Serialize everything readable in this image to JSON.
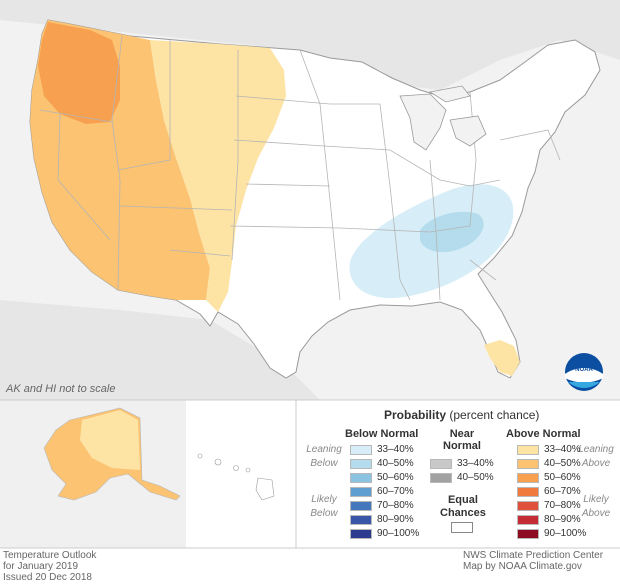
{
  "notes": {
    "scale": "AK and HI not to scale"
  },
  "legend": {
    "title_bold": "Probability",
    "title_rest": "(percent chance)",
    "below_head": "Below Normal",
    "near_head_1": "Near",
    "near_head_2": "Normal",
    "above_head": "Above Normal",
    "leaning_below_1": "Leaning",
    "leaning_below_2": "Below",
    "likely_below_1": "Likely",
    "likely_below_2": "Below",
    "leaning_above_1": "Leaning",
    "leaning_above_2": "Above",
    "likely_above_1": "Likely",
    "likely_above_2": "Above",
    "equal_1": "Equal",
    "equal_2": "Chances",
    "below": [
      {
        "label": "33–40%",
        "color": "#d7eef8"
      },
      {
        "label": "40–50%",
        "color": "#b4dcec"
      },
      {
        "label": "50–60%",
        "color": "#8cc3e0"
      },
      {
        "label": "60–70%",
        "color": "#5f9ed0"
      },
      {
        "label": "70–80%",
        "color": "#4577bd"
      },
      {
        "label": "80–90%",
        "color": "#3a56a8"
      },
      {
        "label": "90–100%",
        "color": "#2c3a8f"
      }
    ],
    "near": [
      {
        "label": "33–40%",
        "color": "#c8c8c8"
      },
      {
        "label": "40–50%",
        "color": "#a2a2a2"
      }
    ],
    "above": [
      {
        "label": "33–40%",
        "color": "#fde4a5"
      },
      {
        "label": "40–50%",
        "color": "#fbc372"
      },
      {
        "label": "50–60%",
        "color": "#f7a050"
      },
      {
        "label": "60–70%",
        "color": "#f07a3d"
      },
      {
        "label": "70–80%",
        "color": "#e0513b"
      },
      {
        "label": "80–90%",
        "color": "#c62c35"
      },
      {
        "label": "90–100%",
        "color": "#8e0c22"
      }
    ]
  },
  "footer": {
    "left_1": "Temperature Outlook",
    "left_2": "for January 2019",
    "left_3": "Issued 20 Dec 2018",
    "right_1": "NWS Climate Prediction Center",
    "right_2": "Map by NOAA Climate.gov"
  },
  "logo": {
    "text": "NOAA"
  }
}
